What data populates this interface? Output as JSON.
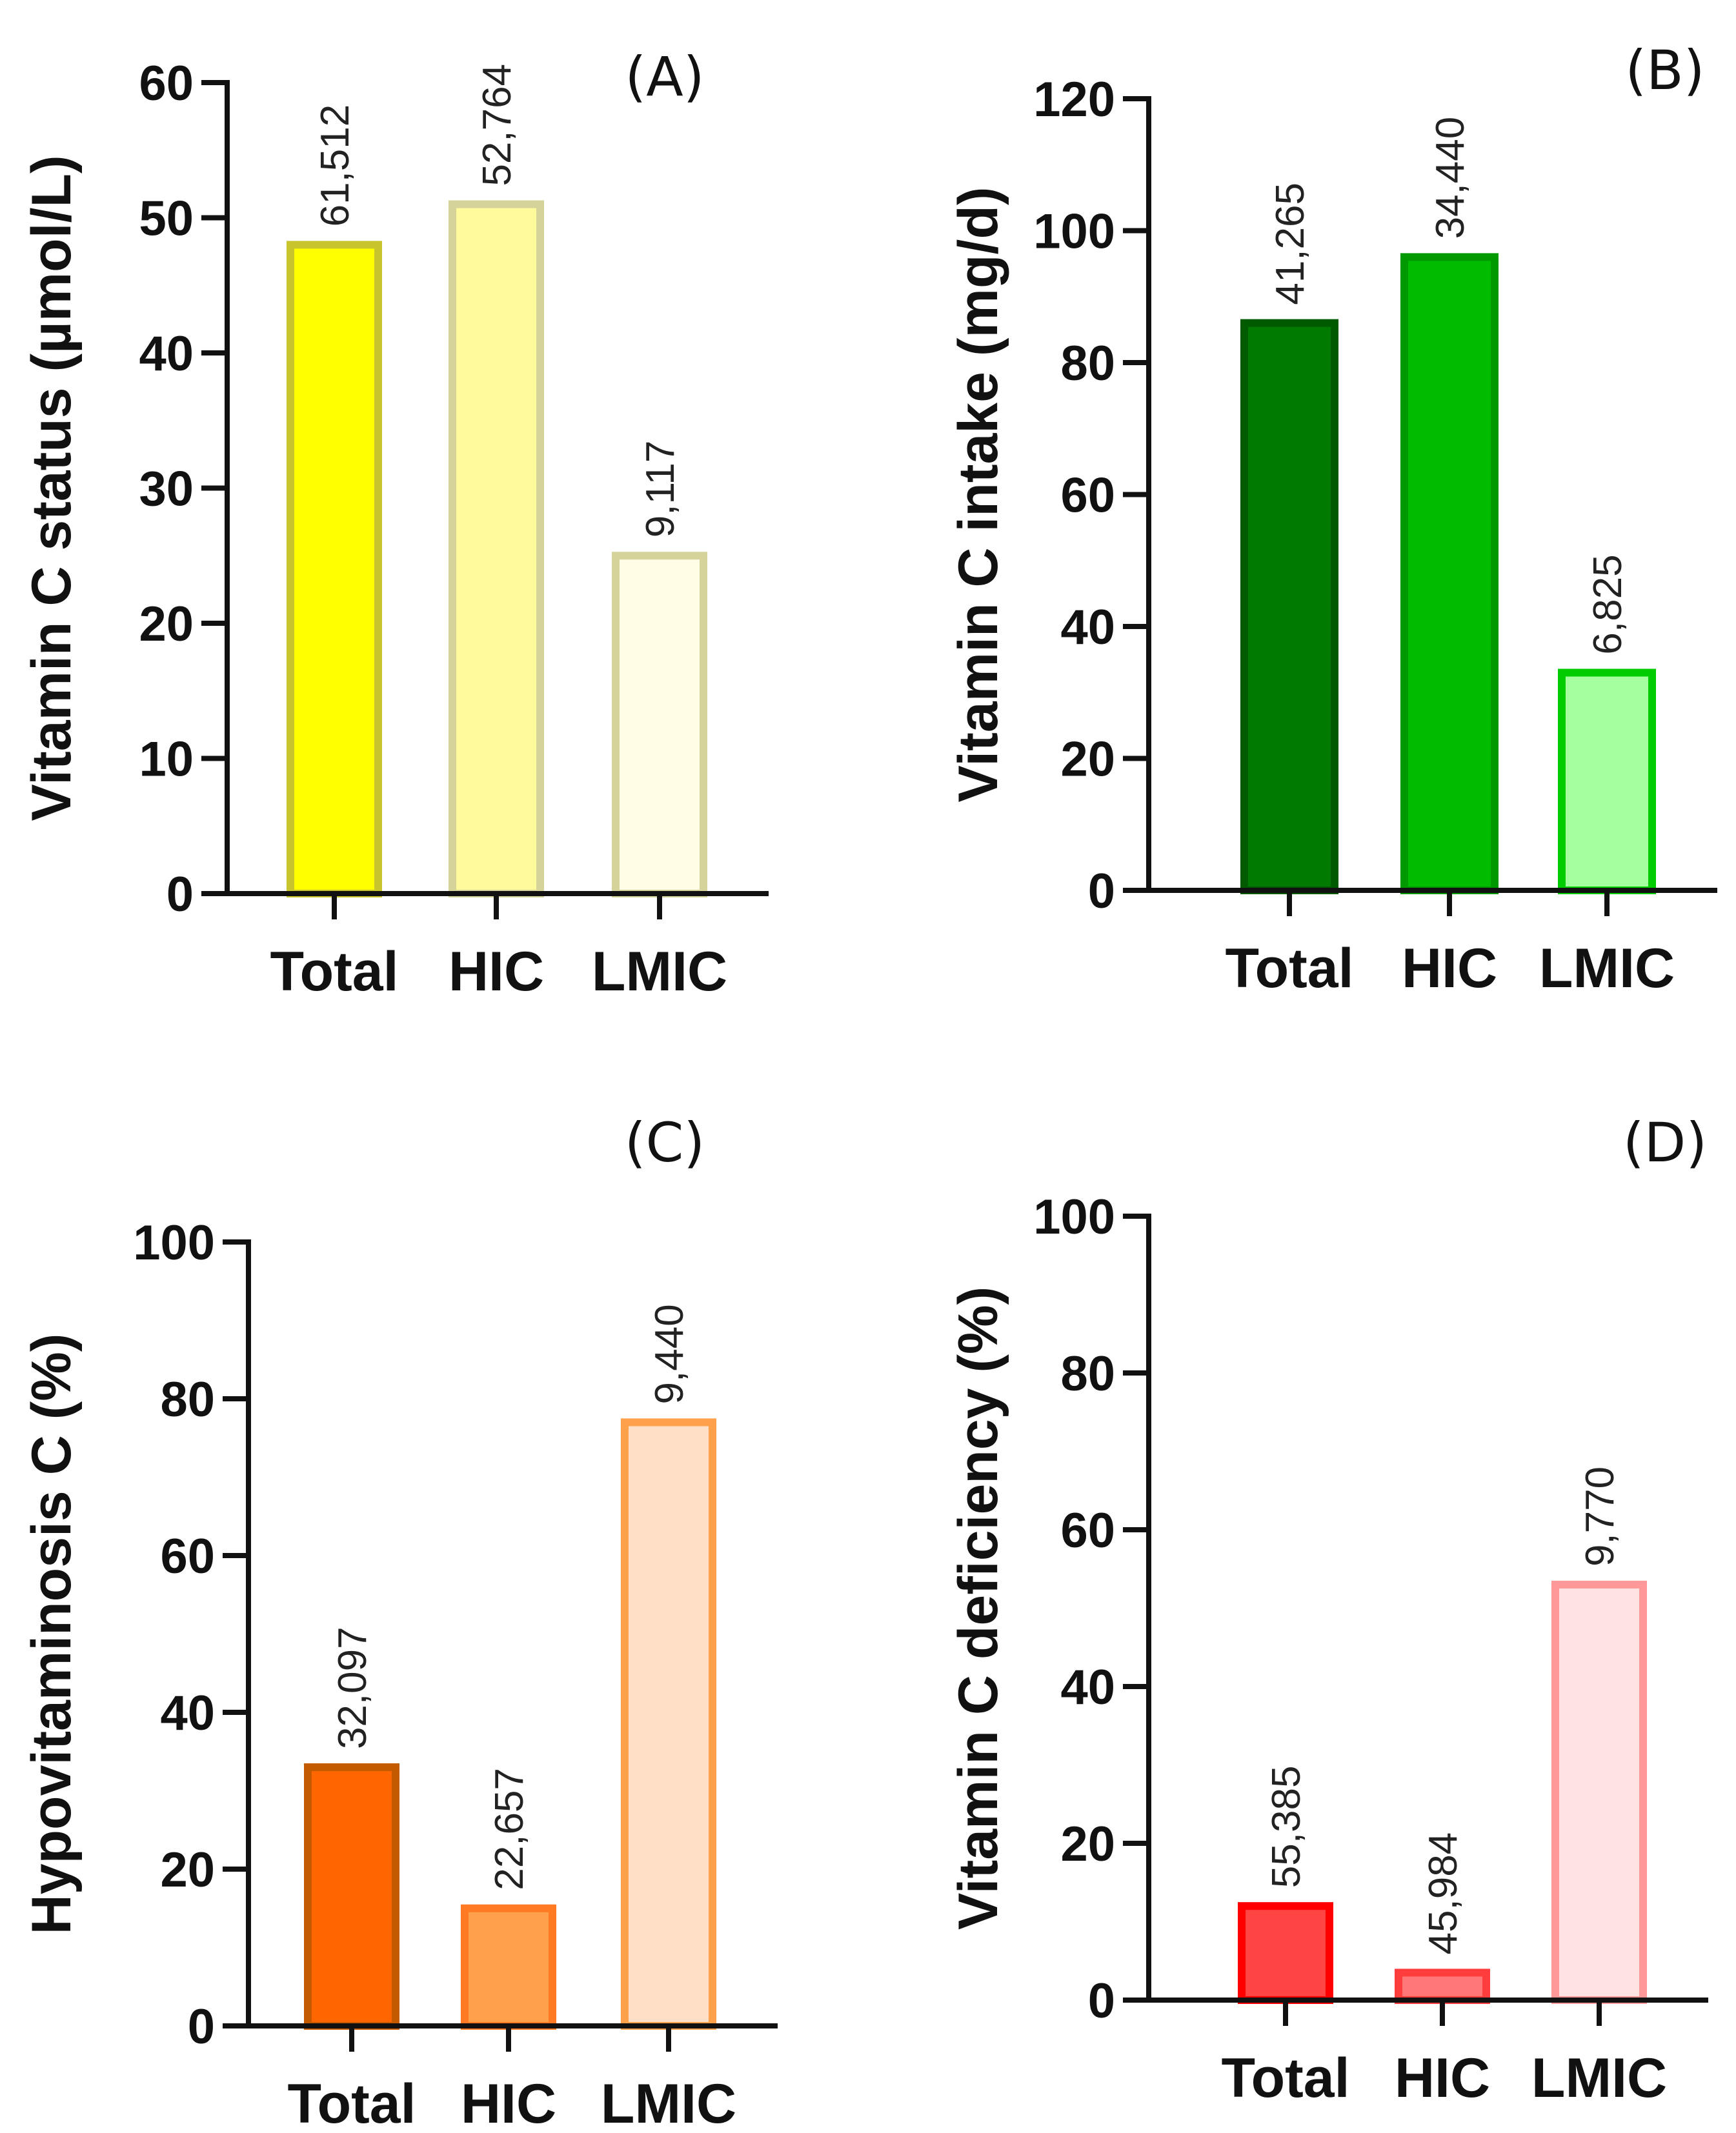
{
  "chart_data": [
    {
      "type": "bar",
      "panel_label": "(A)",
      "ylabel": "Vitamin C status (µmol/L)",
      "xlabel": "",
      "categories": [
        "Total",
        "HIC",
        "LMIC"
      ],
      "values": [
        48,
        51,
        25
      ],
      "data_labels": [
        "61,512",
        "52,764",
        "9,117"
      ],
      "ylim": [
        0,
        60
      ],
      "yticks": [
        0,
        10,
        20,
        30,
        40,
        50,
        60
      ],
      "grid": false,
      "colors": {
        "fill": [
          "#ffff00",
          "#fffa9c",
          "#fffde6"
        ],
        "stroke": [
          "#c8c42e",
          "#d6d39a",
          "#d6d39a"
        ]
      }
    },
    {
      "type": "bar",
      "panel_label": "(B)",
      "ylabel": "Vitamin C intake (mg/d)",
      "xlabel": "",
      "categories": [
        "Total",
        "HIC",
        "LMIC"
      ],
      "values": [
        86,
        96,
        33
      ],
      "data_labels": [
        "41,265",
        "34,440",
        "6,825"
      ],
      "ylim": [
        0,
        120
      ],
      "yticks": [
        0,
        20,
        40,
        60,
        80,
        100,
        120
      ],
      "grid": false,
      "colors": {
        "fill": [
          "#007a00",
          "#00bb00",
          "#a6ff9e"
        ],
        "stroke": [
          "#005a00",
          "#009900",
          "#00cc00"
        ]
      }
    },
    {
      "type": "bar",
      "panel_label": "(C)",
      "ylabel": "Hypovitaminosis C (%)",
      "xlabel": "",
      "categories": [
        "Total",
        "HIC",
        "LMIC"
      ],
      "values": [
        33,
        15,
        77
      ],
      "data_labels": [
        "32,097",
        "22,657",
        "9,440"
      ],
      "ylim": [
        0,
        100
      ],
      "yticks": [
        0,
        20,
        40,
        60,
        80,
        100
      ],
      "grid": false,
      "colors": {
        "fill": [
          "#ff6600",
          "#ffa04a",
          "#ffe0c6"
        ],
        "stroke": [
          "#c45a00",
          "#ff7a22",
          "#ffa04a"
        ]
      }
    },
    {
      "type": "bar",
      "panel_label": "(D)",
      "ylabel": "Vitamin C deficiency (%)",
      "xlabel": "",
      "categories": [
        "Total",
        "HIC",
        "LMIC"
      ],
      "values": [
        12,
        3.5,
        53
      ],
      "data_labels": [
        "55,385",
        "45,984",
        "9,770"
      ],
      "ylim": [
        0,
        100
      ],
      "yticks": [
        0,
        20,
        40,
        60,
        80,
        100
      ],
      "grid": false,
      "colors": {
        "fill": [
          "#ff4444",
          "#ff7777",
          "#ffe2e2"
        ],
        "stroke": [
          "#ff0000",
          "#ff3d3d",
          "#ff9999"
        ]
      }
    }
  ]
}
